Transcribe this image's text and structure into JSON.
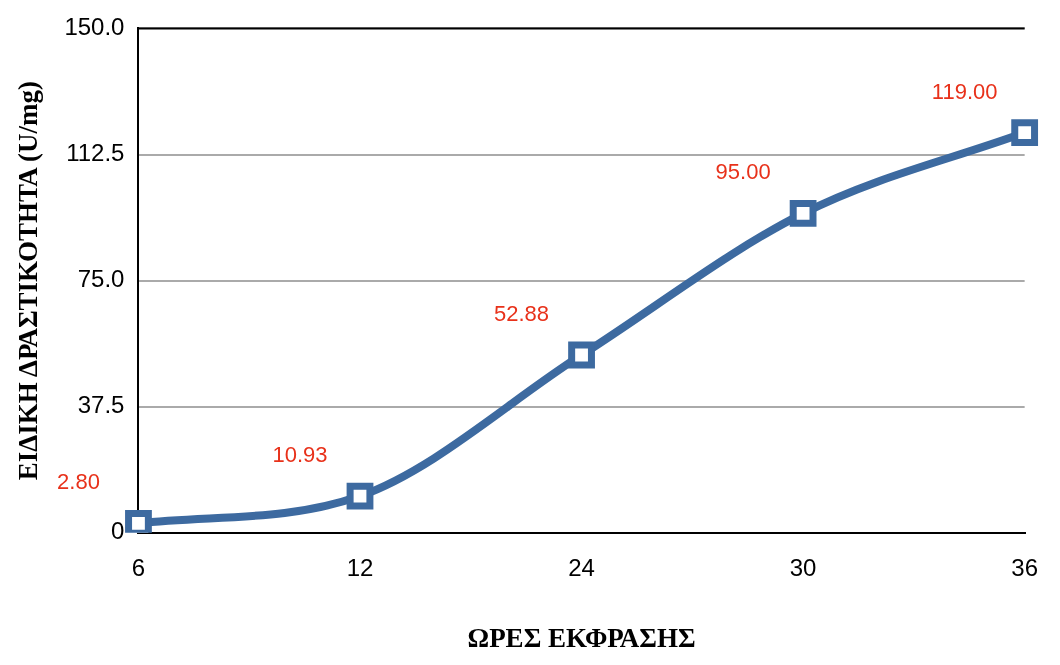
{
  "chart_data": {
    "type": "line",
    "xlabel": "ΩΡΕΣ ΕΚΦΡΑΣΗΣ",
    "ylabel": "ΕΙΔΙΚΗ ΔΡΑΣΤΙΚΟΤΗΤΑ (U/mg)",
    "categories": [
      "6",
      "12",
      "24",
      "30",
      "36"
    ],
    "series": [
      {
        "color": "#3d6aa0",
        "values": [
          2.8,
          10.93,
          52.88,
          95,
          119
        ],
        "value_labels": [
          "2.80",
          "10.93",
          "52.88",
          "95.00",
          "119.00"
        ]
      }
    ],
    "ylim": [
      0,
      150
    ],
    "yticks": [
      0,
      37.5,
      {
        "value": 75,
        "label": "75.0"
      },
      112.5,
      {
        "value": 150,
        "label": "150.0"
      }
    ],
    "grid": "y",
    "legend": false,
    "marker": "square",
    "line_style": "solid"
  }
}
